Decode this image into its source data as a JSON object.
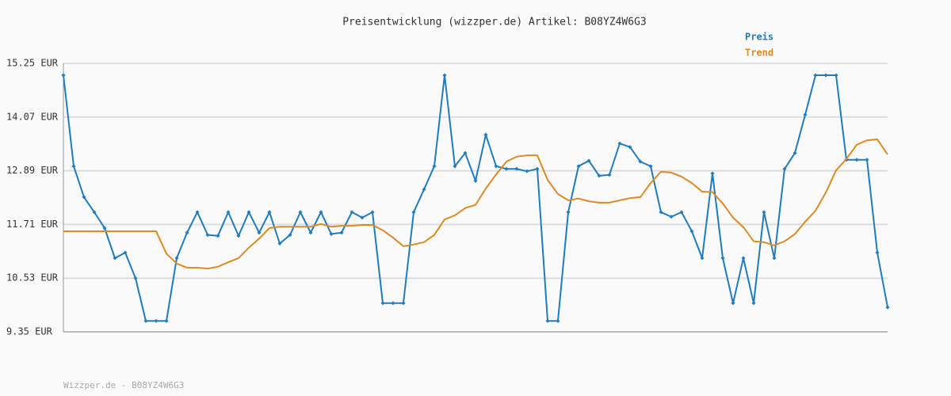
{
  "chart_data": {
    "type": "line",
    "title": "Preisentwicklung (wizzper.de) Artikel: B08YZ4W6G3",
    "footer": "Wizzper.de - B08YZ4W6G3",
    "ylim": [
      9.35,
      15.25
    ],
    "yticks": [
      {
        "value": 9.35,
        "label": "9.35 EUR"
      },
      {
        "value": 10.53,
        "label": "10.53 EUR"
      },
      {
        "value": 11.71,
        "label": "11.71 EUR"
      },
      {
        "value": 12.89,
        "label": "12.89 EUR"
      },
      {
        "value": 14.07,
        "label": "14.07 EUR"
      },
      {
        "value": 15.25,
        "label": "15.25 EUR"
      }
    ],
    "grid": true,
    "legend": "top-right",
    "series": [
      {
        "name": "Preis",
        "color": "#1f7cc0",
        "markers": true,
        "values": [
          14.99,
          12.99,
          12.31,
          11.98,
          11.63,
          10.97,
          11.09,
          10.53,
          9.59,
          9.59,
          9.59,
          10.97,
          11.53,
          11.98,
          11.48,
          11.46,
          11.98,
          11.46,
          11.98,
          11.53,
          11.98,
          11.29,
          11.48,
          11.98,
          11.53,
          11.98,
          11.5,
          11.53,
          11.98,
          11.86,
          11.98,
          9.98,
          9.98,
          9.98,
          11.98,
          12.48,
          12.99,
          14.99,
          12.99,
          13.28,
          12.67,
          13.68,
          12.99,
          12.93,
          12.93,
          12.88,
          12.93,
          9.59,
          9.59,
          11.98,
          12.99,
          13.11,
          12.78,
          12.8,
          13.49,
          13.41,
          13.09,
          12.99,
          11.98,
          11.88,
          11.98,
          11.56,
          10.97,
          12.83,
          10.97,
          9.98,
          10.97,
          9.98,
          11.98,
          10.97,
          12.93,
          13.28,
          14.12,
          14.99,
          14.99,
          14.99,
          13.13,
          13.13,
          13.13,
          11.09,
          9.89
        ]
      },
      {
        "name": "Trend",
        "color": "#e08a22",
        "markers": false,
        "values": [
          11.56,
          11.56,
          11.56,
          11.56,
          11.56,
          11.56,
          11.56,
          11.56,
          11.56,
          11.56,
          11.07,
          10.85,
          10.76,
          10.76,
          10.74,
          10.78,
          10.88,
          10.97,
          11.2,
          11.4,
          11.63,
          11.66,
          11.66,
          11.66,
          11.66,
          11.72,
          11.66,
          11.68,
          11.68,
          11.7,
          11.7,
          11.58,
          11.42,
          11.23,
          11.27,
          11.32,
          11.48,
          11.82,
          11.91,
          12.07,
          12.14,
          12.5,
          12.81,
          13.09,
          13.2,
          13.23,
          13.23,
          12.69,
          12.38,
          12.24,
          12.28,
          12.22,
          12.19,
          12.19,
          12.24,
          12.29,
          12.31,
          12.62,
          12.87,
          12.85,
          12.76,
          12.62,
          12.43,
          12.42,
          12.17,
          11.86,
          11.65,
          11.34,
          11.32,
          11.25,
          11.34,
          11.5,
          11.77,
          12.01,
          12.41,
          12.9,
          13.15,
          13.46,
          13.56,
          13.58,
          13.25
        ]
      }
    ]
  }
}
